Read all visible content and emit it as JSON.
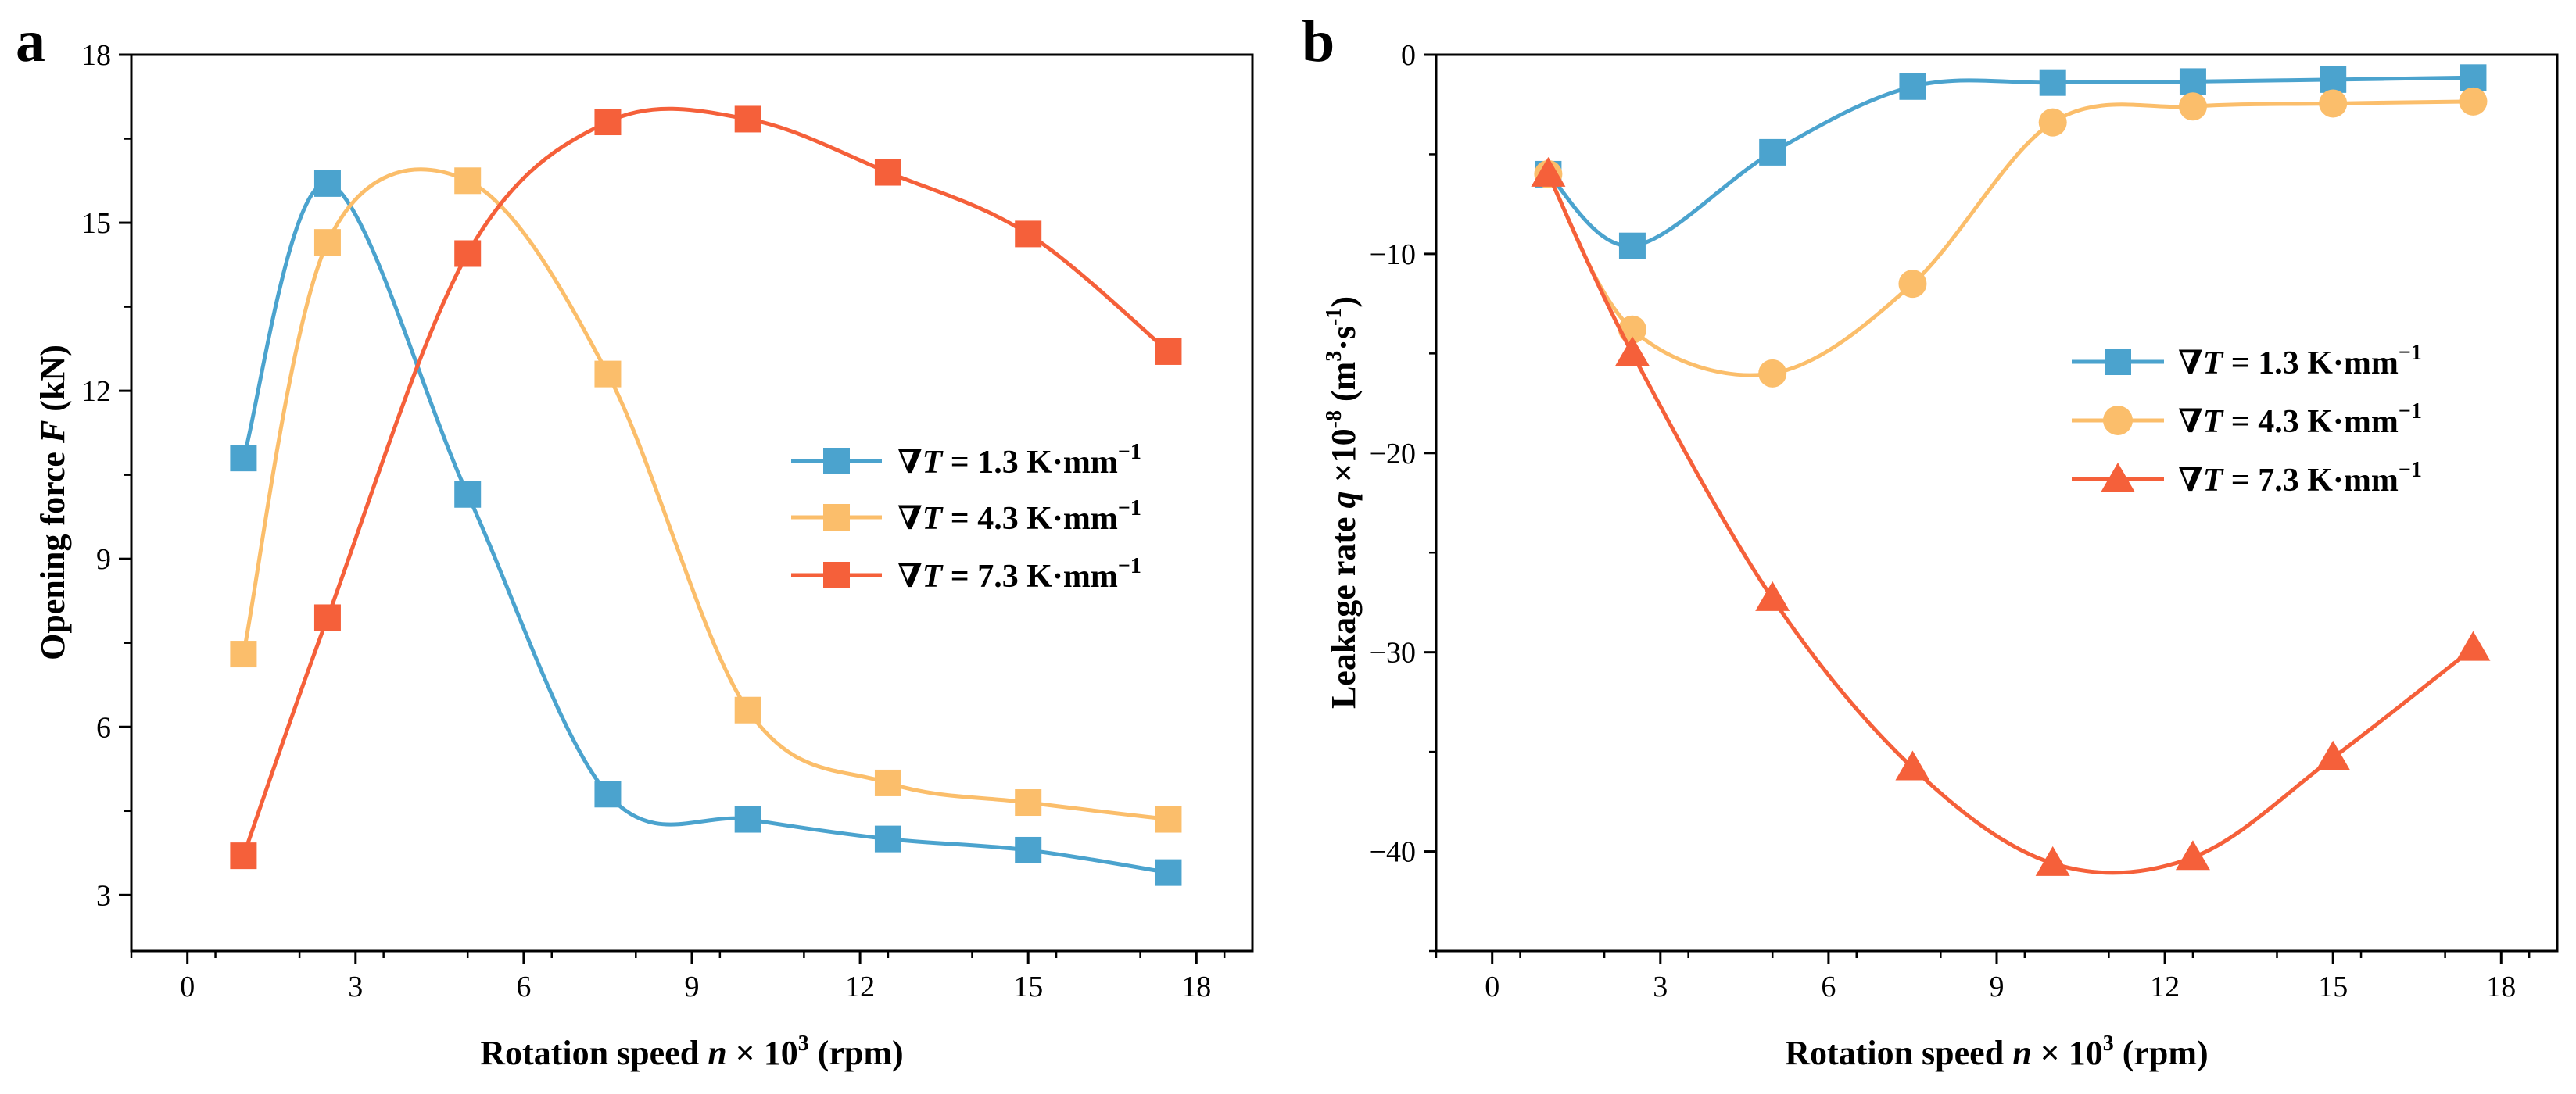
{
  "panels": [
    {
      "label": "a",
      "ylabel_pre": "Opening force ",
      "ylabel_var": "F",
      "ylabel_post": " (kN)",
      "xlabel_pre": "Rotation speed ",
      "xlabel_var": "n",
      "xlabel_mid": " × 10",
      "xlabel_sup": "3",
      "xlabel_post": " (rpm)",
      "x_ticks": [
        "0",
        "3",
        "6",
        "9",
        "12",
        "15",
        "18"
      ],
      "y_ticks": [
        "3",
        "6",
        "9",
        "12",
        "15",
        "18"
      ],
      "legend": [
        {
          "pre": "∇",
          "var": "T",
          "text": " = 1.3 K·mm",
          "sup": "−1"
        },
        {
          "pre": "∇",
          "var": "T",
          "text": " = 4.3 K·mm",
          "sup": "−1"
        },
        {
          "pre": "∇",
          "var": "T",
          "text": " = 7.3 K·mm",
          "sup": "−1"
        }
      ]
    },
    {
      "label": "b",
      "ylabel_pre": "Leakage rate ",
      "ylabel_var": "q",
      "ylabel_post": " ×10",
      "ylabel_sup": "-8",
      "ylabel_unit_open": " (m",
      "ylabel_unit_sup1": "3",
      "ylabel_unit_mid": "·s",
      "ylabel_unit_sup2": "-1",
      "ylabel_unit_close": ")",
      "xlabel_pre": "Rotation speed ",
      "xlabel_var": "n",
      "xlabel_mid": " × 10",
      "xlabel_sup": "3",
      "xlabel_post": " (rpm)",
      "x_ticks": [
        "0",
        "3",
        "6",
        "9",
        "12",
        "15",
        "18"
      ],
      "y_ticks": [
        "0",
        "−10",
        "−20",
        "−30",
        "−40"
      ],
      "legend": [
        {
          "pre": "∇",
          "var": "T",
          "text": " = 1.3 K·mm",
          "sup": "−1"
        },
        {
          "pre": "∇",
          "var": "T",
          "text": " = 4.3 K·mm",
          "sup": "−1"
        },
        {
          "pre": "∇",
          "var": "T",
          "text": " = 7.3 K·mm",
          "sup": "−1"
        }
      ]
    }
  ],
  "chart_data": [
    {
      "type": "line",
      "panel": "a",
      "xlabel": "Rotation speed n × 10^3 (rpm)",
      "ylabel": "Opening force F (kN)",
      "xlim": [
        -1,
        19
      ],
      "ylim": [
        2,
        18
      ],
      "x_ticks": [
        0,
        3,
        6,
        9,
        12,
        15,
        18
      ],
      "y_ticks": [
        3,
        6,
        9,
        12,
        15,
        18
      ],
      "legend_position": "center-right",
      "series": [
        {
          "name": "∇T = 1.3 K·mm−1",
          "color": "#4ba3ce",
          "marker": "square",
          "x": [
            1,
            2.5,
            5,
            7.5,
            10,
            12.5,
            15,
            17.5
          ],
          "y": [
            10.8,
            15.7,
            10.15,
            4.8,
            4.35,
            4.0,
            3.8,
            3.4
          ]
        },
        {
          "name": "∇T = 4.3 K·mm−1",
          "color": "#fbbe6b",
          "marker": "square",
          "x": [
            1,
            2.5,
            5,
            7.5,
            10,
            12.5,
            15,
            17.5
          ],
          "y": [
            7.3,
            14.65,
            15.75,
            12.3,
            6.3,
            5.0,
            4.65,
            4.35
          ]
        },
        {
          "name": "∇T = 7.3 K·mm−1",
          "color": "#f5603a",
          "marker": "square",
          "x": [
            1,
            2.5,
            5,
            7.5,
            10,
            12.5,
            15,
            17.5
          ],
          "y": [
            3.7,
            7.95,
            14.45,
            16.8,
            16.85,
            15.9,
            14.8,
            12.7
          ]
        }
      ]
    },
    {
      "type": "line",
      "panel": "b",
      "xlabel": "Rotation speed n × 10^3 (rpm)",
      "ylabel": "Leakage rate q ×10^-8 (m^3·s^-1)",
      "xlim": [
        -1,
        19
      ],
      "ylim": [
        -45,
        0
      ],
      "x_ticks": [
        0,
        3,
        6,
        9,
        12,
        15,
        18
      ],
      "y_ticks": [
        0,
        -10,
        -20,
        -30,
        -40
      ],
      "legend_position": "center-right",
      "series": [
        {
          "name": "∇T = 1.3 K·mm−1",
          "color": "#4ba3ce",
          "marker": "square",
          "x": [
            1,
            2.5,
            5,
            7.5,
            10,
            12.5,
            15,
            17.5
          ],
          "y": [
            -6.0,
            -9.6,
            -4.9,
            -1.6,
            -1.4,
            -1.35,
            -1.25,
            -1.15
          ]
        },
        {
          "name": "∇T = 4.3 K·mm−1",
          "color": "#fbbe6b",
          "marker": "circle",
          "x": [
            1,
            2.5,
            5,
            7.5,
            10,
            12.5,
            15,
            17.5
          ],
          "y": [
            -6.0,
            -13.8,
            -16.0,
            -11.5,
            -3.4,
            -2.6,
            -2.45,
            -2.35
          ]
        },
        {
          "name": "∇T = 7.3 K·mm−1",
          "color": "#f5603a",
          "marker": "triangle",
          "x": [
            1,
            2.5,
            5,
            7.5,
            10,
            12.5,
            15,
            17.5
          ],
          "y": [
            -6.0,
            -15.0,
            -27.3,
            -35.8,
            -40.6,
            -40.3,
            -35.3,
            -29.8
          ]
        }
      ]
    }
  ]
}
